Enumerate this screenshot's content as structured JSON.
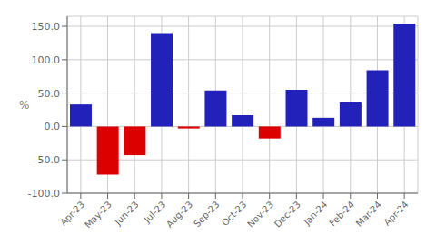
{
  "chart_data": {
    "type": "bar",
    "y_label": "%",
    "categories": [
      "Apr-23",
      "May-23",
      "Jun-23",
      "Jul-23",
      "Aug-23",
      "Sep-23",
      "Oct-23",
      "Nov-23",
      "Dec-23",
      "Jan-24",
      "Feb-24",
      "Mar-24",
      "Apr-24"
    ],
    "values": [
      33,
      -72,
      -43,
      140,
      -3,
      54,
      17,
      -18,
      55,
      13,
      36,
      84,
      154
    ],
    "colors": [
      "#2222bb",
      "#dd0000",
      "#dd0000",
      "#2222bb",
      "#dd0000",
      "#2222bb",
      "#2222bb",
      "#dd0000",
      "#2222bb",
      "#2222bb",
      "#2222bb",
      "#2222bb",
      "#2222bb"
    ],
    "ylim": [
      -100,
      165
    ],
    "yticks": [
      {
        "value": -100.0,
        "label": "-100.0"
      },
      {
        "value": -50.0,
        "label": "-50.0"
      },
      {
        "value": 0.0,
        "label": "0.0"
      },
      {
        "value": 50.0,
        "label": "50.0"
      },
      {
        "value": 100.0,
        "label": "100.0"
      },
      {
        "value": 150.0,
        "label": "150.0"
      }
    ],
    "grid": true
  }
}
